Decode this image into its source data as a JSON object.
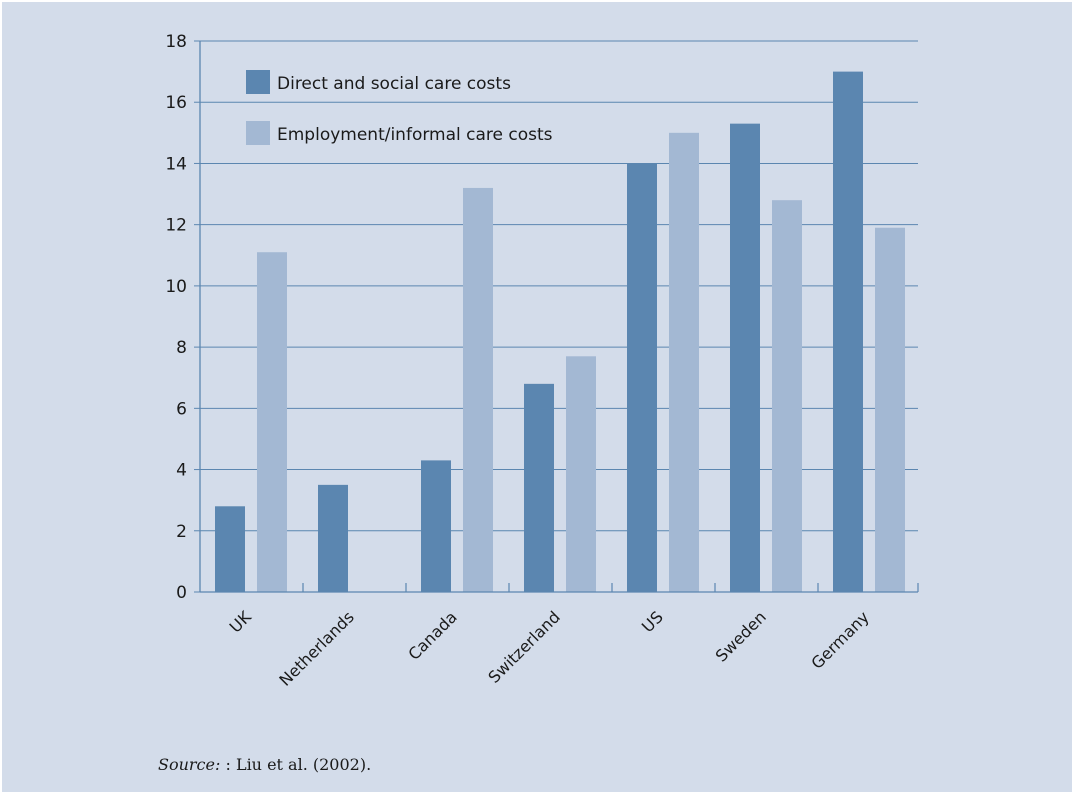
{
  "chart_data": {
    "type": "bar",
    "categories": [
      "UK",
      "Netherlands",
      "Canada",
      "Switzerland",
      "US",
      "Sweden",
      "Germany"
    ],
    "series": [
      {
        "name": "Direct and social care costs",
        "values": [
          2.8,
          3.5,
          4.3,
          6.8,
          14.0,
          15.3,
          17.0
        ],
        "color": "#5b86b0"
      },
      {
        "name": "Employment/informal care costs",
        "values": [
          11.1,
          0,
          13.2,
          7.7,
          15.0,
          12.8,
          11.9
        ],
        "color": "#a3b8d3"
      }
    ],
    "ylim": [
      0,
      18
    ],
    "yticks": [
      0,
      2,
      4,
      6,
      8,
      10,
      12,
      14,
      16,
      18
    ],
    "grid": true,
    "legend": "top-left",
    "title": "",
    "xlabel": "",
    "ylabel": ""
  },
  "source": {
    "label": "Source:",
    "text": " : Liu et al. (2002)."
  },
  "colors": {
    "background": "#d3dcea",
    "grid": "#5b86b0",
    "axis": "#5b86b0"
  }
}
